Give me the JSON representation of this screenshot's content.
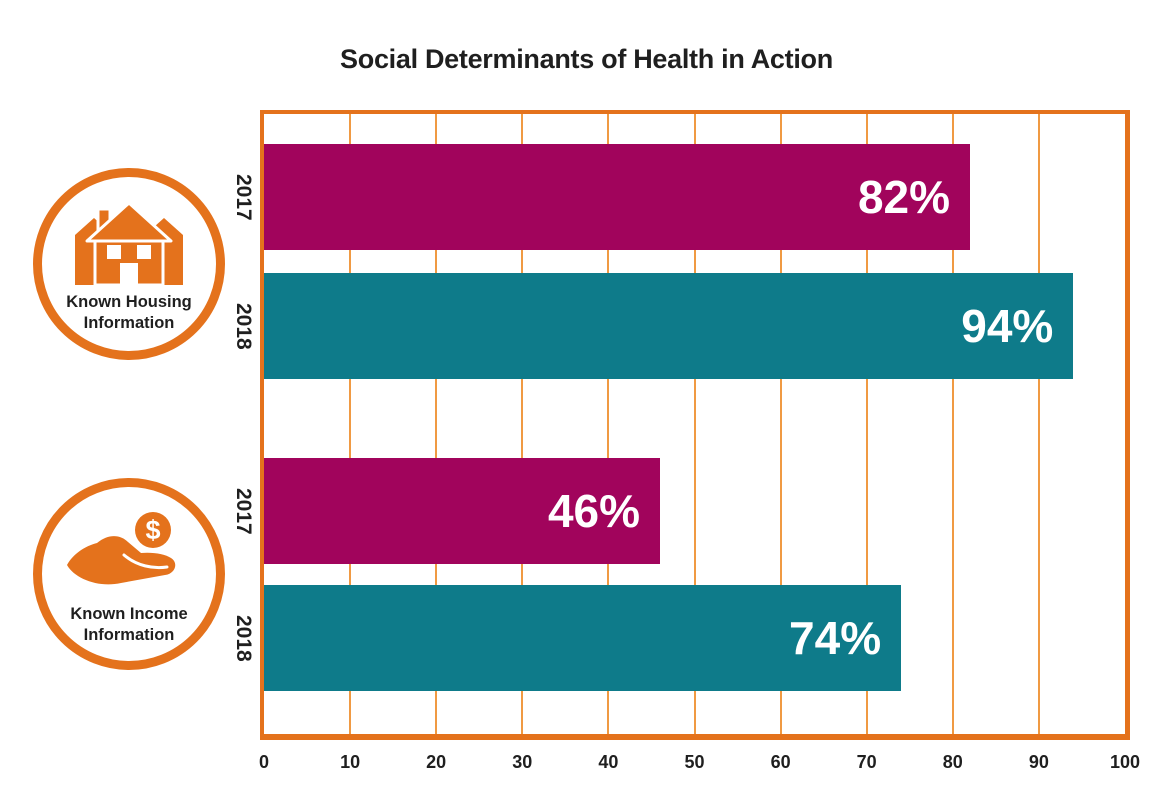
{
  "colors": {
    "orange": "#E4721C",
    "grid_orange": "#F09A43",
    "magenta": "#A1045C",
    "teal": "#0E7B8A",
    "text_dark": "#1F1F1F",
    "value_label_white": "#FFFFFF"
  },
  "ui": {
    "icons": {
      "coin_symbol": "$"
    }
  },
  "chart_data": {
    "type": "bar",
    "orientation": "horizontal",
    "title": "Social Determinants of Health in Action",
    "xlabel": "",
    "ylabel": "",
    "xlim": [
      0,
      100
    ],
    "x_ticks": [
      0,
      10,
      20,
      30,
      40,
      50,
      60,
      70,
      80,
      90,
      100
    ],
    "grid": "vertical",
    "legend_position": "left",
    "groups": [
      {
        "label": "Known Housing Information",
        "icon": "house-icon",
        "bars": [
          {
            "year": "2017",
            "value": 82,
            "label": "82%",
            "color_key": "magenta"
          },
          {
            "year": "2018",
            "value": 94,
            "label": "94%",
            "color_key": "teal"
          }
        ]
      },
      {
        "label": "Known Income Information",
        "icon": "coin-in-hand-icon",
        "bars": [
          {
            "year": "2017",
            "value": 46,
            "label": "46%",
            "color_key": "magenta"
          },
          {
            "year": "2018",
            "value": 74,
            "label": "74%",
            "color_key": "teal"
          }
        ]
      }
    ]
  }
}
